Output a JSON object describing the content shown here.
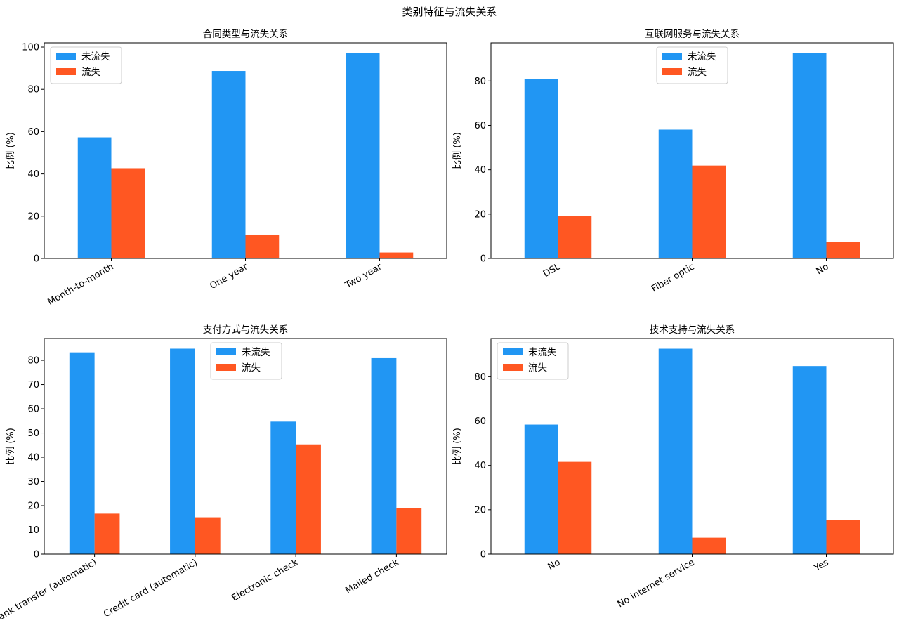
{
  "figure": {
    "title": "类别特征与流失关系"
  },
  "colors": {
    "not_churned": "#2196F3",
    "churned": "#FF5722"
  },
  "chart_data": [
    {
      "type": "bar",
      "title": "合同类型与流失关系",
      "xlabel": "",
      "ylabel": "比例 (%)",
      "categories": [
        "Month-to-month",
        "One year",
        "Two year"
      ],
      "series": [
        {
          "name": "未流失",
          "values": [
            57.3,
            88.7,
            97.2
          ]
        },
        {
          "name": "流失",
          "values": [
            42.7,
            11.3,
            2.8
          ]
        }
      ],
      "ylim": [
        0,
        102
      ],
      "yticks": [
        0,
        20,
        40,
        60,
        80,
        100
      ],
      "legend": "upper-left",
      "grid": false
    },
    {
      "type": "bar",
      "title": "互联网服务与流失关系",
      "xlabel": "",
      "ylabel": "比例 (%)",
      "categories": [
        "DSL",
        "Fiber optic",
        "No"
      ],
      "series": [
        {
          "name": "未流失",
          "values": [
            81.0,
            58.1,
            92.6
          ]
        },
        {
          "name": "流失",
          "values": [
            19.0,
            41.9,
            7.4
          ]
        }
      ],
      "ylim": [
        0,
        97.2
      ],
      "yticks": [
        0,
        20,
        40,
        60,
        80
      ],
      "legend": "upper-center",
      "grid": false
    },
    {
      "type": "bar",
      "title": "支付方式与流失关系",
      "xlabel": "",
      "ylabel": "比例 (%)",
      "categories": [
        "Bank transfer (automatic)",
        "Credit card (automatic)",
        "Electronic check",
        "Mailed check"
      ],
      "series": [
        {
          "name": "未流失",
          "values": [
            83.3,
            84.8,
            54.7,
            80.9
          ]
        },
        {
          "name": "流失",
          "values": [
            16.7,
            15.2,
            45.3,
            19.1
          ]
        }
      ],
      "ylim": [
        0,
        89.0
      ],
      "yticks": [
        0,
        10,
        20,
        30,
        40,
        50,
        60,
        70,
        80
      ],
      "legend": "upper-center",
      "grid": false
    },
    {
      "type": "bar",
      "title": "技术支持与流失关系",
      "xlabel": "",
      "ylabel": "比例 (%)",
      "categories": [
        "No",
        "No internet service",
        "Yes"
      ],
      "series": [
        {
          "name": "未流失",
          "values": [
            58.4,
            92.6,
            84.8
          ]
        },
        {
          "name": "流失",
          "values": [
            41.6,
            7.4,
            15.2
          ]
        }
      ],
      "ylim": [
        0,
        97.2
      ],
      "yticks": [
        0,
        20,
        40,
        60,
        80
      ],
      "legend": "upper-left",
      "grid": false
    }
  ]
}
